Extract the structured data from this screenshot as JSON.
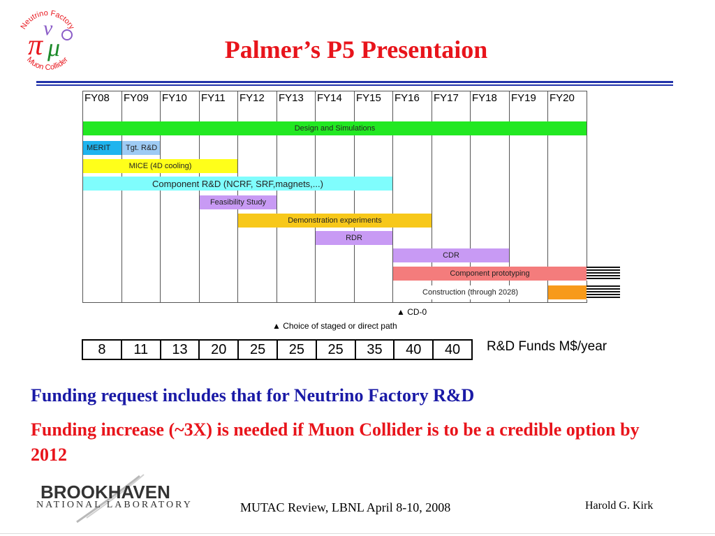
{
  "title": "Palmer’s P5 Presentaion",
  "logo_nf": {
    "top_text": "Neutrino Factory",
    "bottom_text": "Muon Collider",
    "pi": "π",
    "nu": "ν",
    "mu": "μ",
    "colors": {
      "text": "#e8141b",
      "pi": "#e8141b",
      "nu": "#8a5cc7",
      "mu": "#1c8a2a"
    }
  },
  "chart_data": {
    "type": "table",
    "years": [
      "FY08",
      "FY09",
      "FY10",
      "FY11",
      "FY12",
      "FY13",
      "FY14",
      "FY15",
      "FY16",
      "FY17",
      "FY18",
      "FY19",
      "FY20"
    ],
    "tasks": [
      {
        "label": "Design and Simulations",
        "start": "FY08",
        "end": "FY20",
        "color": "#22e822"
      },
      {
        "label": "MERIT",
        "start": "FY08",
        "end": "FY08",
        "color": "#1fb4ee"
      },
      {
        "label": "Tgt. R&D",
        "start": "FY09",
        "end": "FY09",
        "color": "#9ecbf4"
      },
      {
        "label": "MICE (4D cooling)",
        "start": "FY08",
        "end": "FY11",
        "color": "#ffff1a"
      },
      {
        "label": "Component R&D (NCRF, SRF,magnets,...)",
        "start": "FY08",
        "end": "FY15",
        "color": "#7ffdfd"
      },
      {
        "label": "Feasibility Study",
        "start": "FY11",
        "end": "FY12",
        "color": "#c89af4"
      },
      {
        "label": "Demonstration experiments",
        "start": "FY12",
        "end": "FY16",
        "color": "#f7c81a"
      },
      {
        "label": "RDR",
        "start": "FY14",
        "end": "FY15",
        "color": "#c89af4"
      },
      {
        "label": "CDR",
        "start": "FY16",
        "end": "FY18",
        "color": "#c89af4"
      },
      {
        "label": "Component prototyping",
        "start": "FY16",
        "end": "FY20",
        "color": "#f47c7c"
      },
      {
        "label": "Construction (through 2028)",
        "start": "FY16",
        "end": "FY19",
        "color": "#ffffff"
      },
      {
        "label": "",
        "start": "FY20",
        "end": "FY20",
        "color": "#f79a1a"
      }
    ],
    "markers": [
      {
        "symbol": "▲",
        "label": "CD-0",
        "year": "FY16"
      },
      {
        "symbol": "▲",
        "label": "Choice of staged or direct path",
        "year": "FY13"
      }
    ],
    "funds": {
      "label": "R&D Funds  M$/year",
      "values": [
        "8",
        "11",
        "13",
        "20",
        "25",
        "25",
        "25",
        "35",
        "40",
        "40"
      ]
    }
  },
  "bullets": {
    "line1": "Funding request includes that for Neutrino Factory R&D",
    "line2": "Funding increase (~3X) is needed if Muon Collider is to be a credible option by 2012"
  },
  "footer": {
    "org_name": "BROOKHAVEN",
    "org_sub": "NATIONAL LABORATORY",
    "event": "MUTAC Review, LBNL April 8-10, 2008",
    "author": "Harold G. Kirk"
  }
}
